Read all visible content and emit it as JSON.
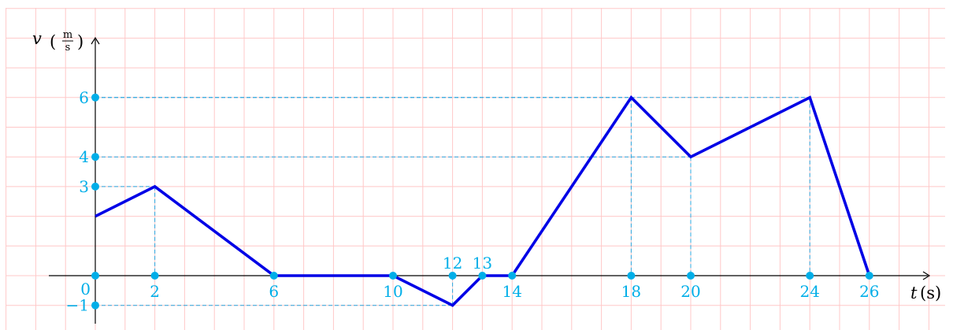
{
  "colors": {
    "grid": "#ffc8c8",
    "axis": "#000000",
    "series": "#0000e6",
    "marker": "#00aee8",
    "guide": "#29a8e0"
  },
  "chart_data": {
    "type": "line",
    "title": "",
    "xlabel": "t (s)",
    "ylabel": "v (m/s)",
    "xlabel_parts": {
      "symbol": "t",
      "unit": "(s)"
    },
    "ylabel_parts": {
      "symbol": "v",
      "unit_num": "m",
      "unit_den": "s"
    },
    "xlim": [
      -1.6,
      28
    ],
    "ylim": [
      -1.6,
      8.5
    ],
    "grid": true,
    "legend": "none",
    "x_ticks": [
      0,
      2,
      6,
      10,
      12,
      13,
      14,
      18,
      20,
      24,
      26
    ],
    "y_ticks": [
      -1,
      3,
      4,
      6
    ],
    "x_tick_labels": [
      "0",
      "2",
      "6",
      "10",
      "12",
      "13",
      "14",
      "18",
      "20",
      "24",
      "26"
    ],
    "y_tick_labels": [
      "−1",
      "3",
      "4",
      "6"
    ],
    "series": [
      {
        "x": [
          0,
          2,
          6,
          10,
          12,
          13,
          14,
          18,
          20,
          24,
          26
        ],
        "y": [
          2,
          3,
          0,
          0,
          -1,
          0,
          0,
          6,
          4,
          6,
          0
        ]
      }
    ],
    "guides": [
      {
        "x": 2,
        "y": 3
      },
      {
        "x": 12,
        "y": -1
      },
      {
        "x": 18,
        "y": 6
      },
      {
        "x": 20,
        "y": 4
      },
      {
        "x": 24,
        "y": 6
      }
    ]
  }
}
